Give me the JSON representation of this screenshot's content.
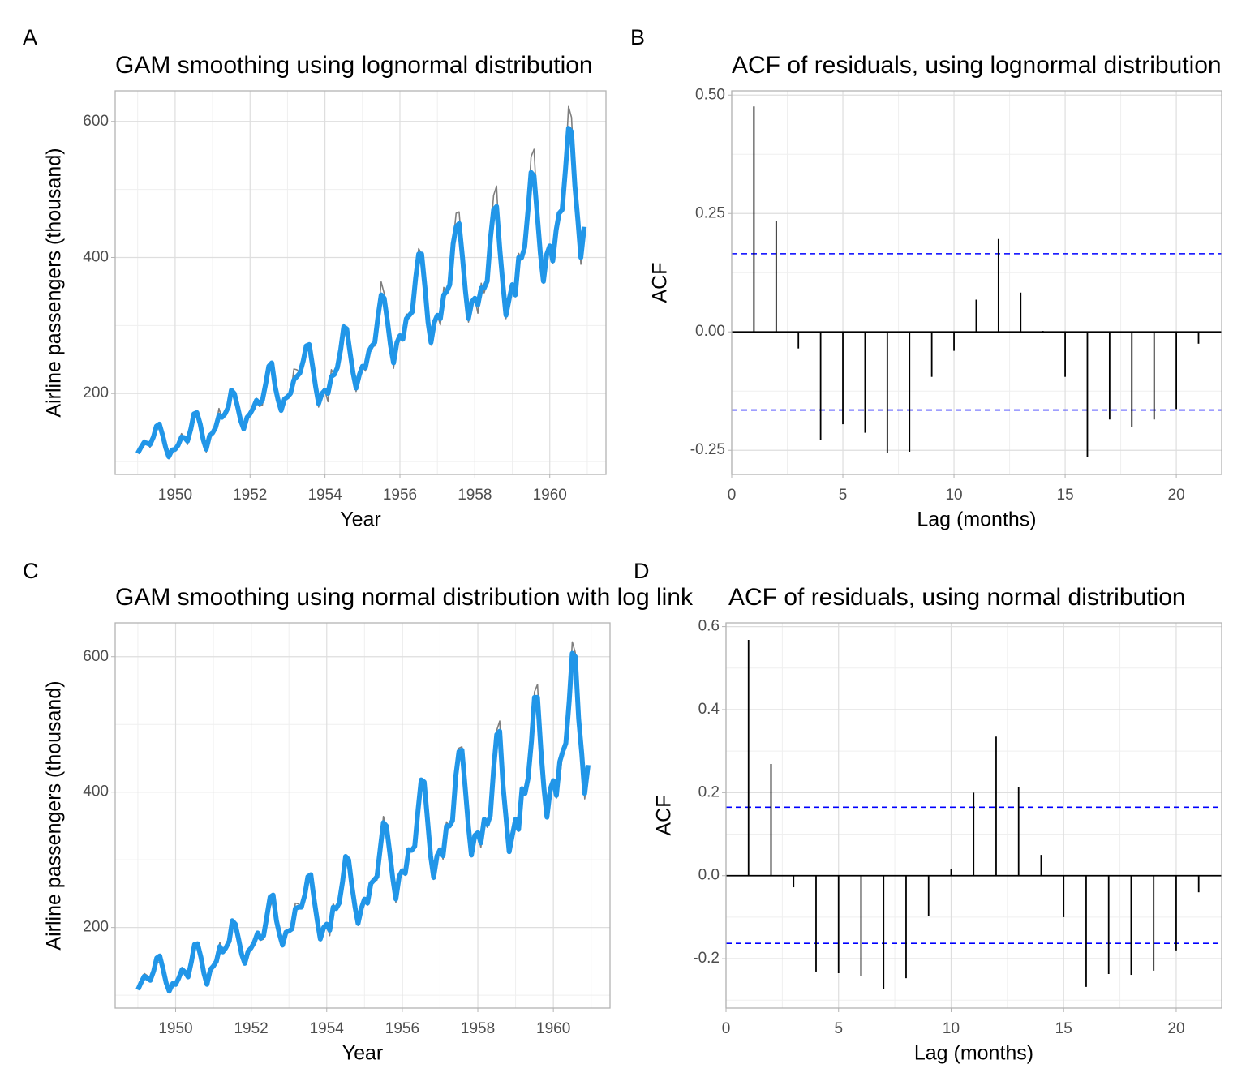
{
  "chart_data": [
    {
      "type": "line",
      "tag": "A",
      "title": "GAM smoothing using lognormal distribution",
      "xlabel": "Year",
      "ylabel": "Airline passengers (thousand)",
      "x": [
        1949,
        1949.08,
        1949.17,
        1949.25,
        1949.33,
        1949.42,
        1949.5,
        1949.58,
        1949.67,
        1949.75,
        1949.83,
        1949.92,
        1950,
        1950.08,
        1950.17,
        1950.25,
        1950.33,
        1950.42,
        1950.5,
        1950.58,
        1950.67,
        1950.75,
        1950.83,
        1950.92,
        1951,
        1951.08,
        1951.17,
        1951.25,
        1951.33,
        1951.42,
        1951.5,
        1951.58,
        1951.67,
        1951.75,
        1951.83,
        1951.92,
        1952,
        1952.08,
        1952.17,
        1952.25,
        1952.33,
        1952.42,
        1952.5,
        1952.58,
        1952.67,
        1952.75,
        1952.83,
        1952.92,
        1953,
        1953.08,
        1953.17,
        1953.25,
        1953.33,
        1953.42,
        1953.5,
        1953.58,
        1953.67,
        1953.75,
        1953.83,
        1953.92,
        1954,
        1954.08,
        1954.17,
        1954.25,
        1954.33,
        1954.42,
        1954.5,
        1954.58,
        1954.67,
        1954.75,
        1954.83,
        1954.92,
        1955,
        1955.08,
        1955.17,
        1955.25,
        1955.33,
        1955.42,
        1955.5,
        1955.58,
        1955.67,
        1955.75,
        1955.83,
        1955.92,
        1956,
        1956.08,
        1956.17,
        1956.25,
        1956.33,
        1956.42,
        1956.5,
        1956.58,
        1956.67,
        1956.75,
        1956.83,
        1956.92,
        1957,
        1957.08,
        1957.17,
        1957.25,
        1957.33,
        1957.42,
        1957.5,
        1957.58,
        1957.67,
        1957.75,
        1957.83,
        1957.92,
        1958,
        1958.08,
        1958.17,
        1958.25,
        1958.33,
        1958.42,
        1958.5,
        1958.58,
        1958.67,
        1958.75,
        1958.83,
        1958.92,
        1959,
        1959.08,
        1959.17,
        1959.25,
        1959.33,
        1959.42,
        1959.5,
        1959.58,
        1959.67,
        1959.75,
        1959.83,
        1959.92,
        1960,
        1960.08,
        1960.17,
        1960.25,
        1960.33,
        1960.42,
        1960.5,
        1960.58,
        1960.67,
        1960.75,
        1960.83,
        1960.92
      ],
      "series": [
        {
          "color": "#7f7f7f",
          "linewidth": 1.6,
          "values": [
            112,
            118,
            132,
            129,
            121,
            135,
            148,
            148,
            136,
            119,
            104,
            118,
            115,
            126,
            141,
            135,
            125,
            149,
            170,
            170,
            158,
            133,
            114,
            140,
            145,
            150,
            178,
            163,
            172,
            178,
            199,
            199,
            184,
            162,
            146,
            166,
            171,
            180,
            193,
            181,
            183,
            218,
            230,
            242,
            209,
            191,
            172,
            194,
            196,
            196,
            236,
            235,
            229,
            243,
            264,
            272,
            237,
            211,
            180,
            201,
            204,
            188,
            235,
            227,
            234,
            264,
            302,
            293,
            259,
            229,
            203,
            229,
            242,
            233,
            267,
            269,
            270,
            315,
            364,
            347,
            312,
            274,
            237,
            278,
            284,
            277,
            317,
            313,
            318,
            374,
            413,
            405,
            355,
            306,
            271,
            306,
            315,
            301,
            356,
            348,
            355,
            422,
            465,
            467,
            404,
            347,
            305,
            336,
            340,
            318,
            362,
            348,
            363,
            435,
            491,
            505,
            404,
            359,
            310,
            337,
            360,
            342,
            406,
            396,
            420,
            472,
            548,
            559,
            463,
            407,
            362,
            405,
            417,
            391,
            419,
            461,
            472,
            535,
            622,
            606,
            508,
            461,
            390,
            432
          ]
        },
        {
          "color": "#2196e8",
          "linewidth": 6,
          "values": [
            112,
            120,
            128,
            127,
            125,
            136,
            152,
            155,
            138,
            120,
            107,
            117,
            118,
            124,
            136,
            135,
            130,
            148,
            170,
            172,
            155,
            132,
            118,
            138,
            142,
            150,
            168,
            165,
            170,
            180,
            205,
            200,
            180,
            160,
            148,
            165,
            170,
            178,
            190,
            185,
            190,
            215,
            240,
            245,
            210,
            190,
            175,
            192,
            195,
            200,
            220,
            225,
            230,
            248,
            270,
            272,
            240,
            210,
            185,
            200,
            205,
            200,
            225,
            228,
            238,
            265,
            298,
            295,
            260,
            230,
            208,
            228,
            240,
            238,
            262,
            270,
            275,
            315,
            345,
            340,
            305,
            270,
            245,
            275,
            285,
            280,
            310,
            315,
            320,
            370,
            405,
            405,
            355,
            305,
            275,
            305,
            315,
            310,
            345,
            350,
            360,
            420,
            445,
            450,
            400,
            350,
            310,
            335,
            340,
            330,
            355,
            355,
            365,
            430,
            470,
            475,
            410,
            360,
            315,
            340,
            360,
            345,
            400,
            400,
            415,
            470,
            525,
            520,
            460,
            405,
            365,
            405,
            417,
            395,
            440,
            465,
            470,
            530,
            590,
            585,
            505,
            455,
            400,
            445
          ]
        }
      ],
      "xlim": [
        1948.4,
        1961.5
      ],
      "ylim": [
        81,
        645
      ],
      "xticks": [
        1950,
        1952,
        1954,
        1956,
        1958,
        1960
      ],
      "yticks": [
        200,
        400,
        600
      ],
      "minor_xticks": [
        1949,
        1951,
        1953,
        1955,
        1957,
        1959,
        1961
      ],
      "minor_yticks": [
        100,
        300,
        500
      ],
      "grid": true
    },
    {
      "type": "stem",
      "tag": "B",
      "title": "ACF of residuals, using lognormal distribution",
      "xlabel": "Lag (months)",
      "ylabel": "ACF",
      "x": [
        1,
        2,
        3,
        4,
        5,
        6,
        7,
        8,
        9,
        10,
        11,
        12,
        13,
        14,
        15,
        16,
        17,
        18,
        19,
        20,
        21
      ],
      "values": [
        0.476,
        0.235,
        -0.035,
        -0.229,
        -0.195,
        -0.213,
        -0.255,
        -0.253,
        -0.095,
        -0.04,
        0.068,
        0.196,
        0.083,
        0.002,
        -0.095,
        -0.265,
        -0.185,
        -0.2,
        -0.185,
        -0.163,
        -0.025
      ],
      "color": "#000000",
      "confidence_bounds": [
        -0.165,
        0.165
      ],
      "ci_color": "#0000ff",
      "xlim": [
        0,
        22.04
      ],
      "ylim": [
        -0.301,
        0.509
      ],
      "xticks": [
        0,
        5,
        10,
        15,
        20
      ],
      "yticks": [
        {
          "value": 0.5,
          "label": "0.50"
        },
        0.25,
        {
          "value": 0,
          "label": "0.00"
        },
        -0.25
      ],
      "minor_xticks": [
        2.5,
        7.5,
        12.5,
        17.5
      ],
      "minor_yticks": [
        0.375,
        0.125,
        -0.125
      ],
      "grid": true
    },
    {
      "type": "line",
      "tag": "C",
      "title": "GAM smoothing using normal distribution with log link",
      "xlabel": "Year",
      "ylabel": "Airline passengers (thousand)",
      "x": [
        1949,
        1949.08,
        1949.17,
        1949.25,
        1949.33,
        1949.42,
        1949.5,
        1949.58,
        1949.67,
        1949.75,
        1949.83,
        1949.92,
        1950,
        1950.08,
        1950.17,
        1950.25,
        1950.33,
        1950.42,
        1950.5,
        1950.58,
        1950.67,
        1950.75,
        1950.83,
        1950.92,
        1951,
        1951.08,
        1951.17,
        1951.25,
        1951.33,
        1951.42,
        1951.5,
        1951.58,
        1951.67,
        1951.75,
        1951.83,
        1951.92,
        1952,
        1952.08,
        1952.17,
        1952.25,
        1952.33,
        1952.42,
        1952.5,
        1952.58,
        1952.67,
        1952.75,
        1952.83,
        1952.92,
        1953,
        1953.08,
        1953.17,
        1953.25,
        1953.33,
        1953.42,
        1953.5,
        1953.58,
        1953.67,
        1953.75,
        1953.83,
        1953.92,
        1954,
        1954.08,
        1954.17,
        1954.25,
        1954.33,
        1954.42,
        1954.5,
        1954.58,
        1954.67,
        1954.75,
        1954.83,
        1954.92,
        1955,
        1955.08,
        1955.17,
        1955.25,
        1955.33,
        1955.42,
        1955.5,
        1955.58,
        1955.67,
        1955.75,
        1955.83,
        1955.92,
        1956,
        1956.08,
        1956.17,
        1956.25,
        1956.33,
        1956.42,
        1956.5,
        1956.58,
        1956.67,
        1956.75,
        1956.83,
        1956.92,
        1957,
        1957.08,
        1957.17,
        1957.25,
        1957.33,
        1957.42,
        1957.5,
        1957.58,
        1957.67,
        1957.75,
        1957.83,
        1957.92,
        1958,
        1958.08,
        1958.17,
        1958.25,
        1958.33,
        1958.42,
        1958.5,
        1958.58,
        1958.67,
        1958.75,
        1958.83,
        1958.92,
        1959,
        1959.08,
        1959.17,
        1959.25,
        1959.33,
        1959.42,
        1959.5,
        1959.58,
        1959.67,
        1959.75,
        1959.83,
        1959.92,
        1960,
        1960.08,
        1960.17,
        1960.25,
        1960.33,
        1960.42,
        1960.5,
        1960.58,
        1960.67,
        1960.75,
        1960.83,
        1960.92
      ],
      "series": [
        {
          "color": "#7f7f7f",
          "linewidth": 1.6,
          "values": [
            112,
            118,
            132,
            129,
            121,
            135,
            148,
            148,
            136,
            119,
            104,
            118,
            115,
            126,
            141,
            135,
            125,
            149,
            170,
            170,
            158,
            133,
            114,
            140,
            145,
            150,
            178,
            163,
            172,
            178,
            199,
            199,
            184,
            162,
            146,
            166,
            171,
            180,
            193,
            181,
            183,
            218,
            230,
            242,
            209,
            191,
            172,
            194,
            196,
            196,
            236,
            235,
            229,
            243,
            264,
            272,
            237,
            211,
            180,
            201,
            204,
            188,
            235,
            227,
            234,
            264,
            302,
            293,
            259,
            229,
            203,
            229,
            242,
            233,
            267,
            269,
            270,
            315,
            364,
            347,
            312,
            274,
            237,
            278,
            284,
            277,
            317,
            313,
            318,
            374,
            413,
            405,
            355,
            306,
            271,
            306,
            315,
            301,
            356,
            348,
            355,
            422,
            465,
            467,
            404,
            347,
            305,
            336,
            340,
            318,
            362,
            348,
            363,
            435,
            491,
            505,
            404,
            359,
            310,
            337,
            360,
            342,
            406,
            396,
            420,
            472,
            548,
            559,
            463,
            407,
            362,
            405,
            417,
            391,
            419,
            461,
            472,
            535,
            622,
            606,
            508,
            461,
            390,
            432
          ]
        },
        {
          "color": "#2196e8",
          "linewidth": 6,
          "values": [
            108,
            118,
            128,
            125,
            122,
            136,
            155,
            158,
            138,
            118,
            106,
            117,
            116,
            125,
            138,
            134,
            127,
            150,
            175,
            176,
            156,
            132,
            116,
            138,
            143,
            150,
            172,
            164,
            170,
            180,
            210,
            205,
            182,
            160,
            147,
            165,
            170,
            178,
            192,
            184,
            188,
            218,
            245,
            248,
            210,
            190,
            174,
            193,
            195,
            198,
            228,
            230,
            230,
            248,
            275,
            278,
            240,
            210,
            183,
            200,
            205,
            196,
            230,
            228,
            236,
            268,
            305,
            300,
            260,
            230,
            206,
            229,
            242,
            236,
            265,
            270,
            275,
            318,
            355,
            350,
            310,
            272,
            242,
            276,
            284,
            280,
            315,
            314,
            320,
            375,
            418,
            415,
            358,
            306,
            274,
            306,
            315,
            306,
            350,
            350,
            358,
            425,
            460,
            462,
            404,
            350,
            307,
            336,
            340,
            325,
            360,
            352,
            365,
            435,
            485,
            490,
            408,
            360,
            312,
            338,
            360,
            345,
            405,
            398,
            420,
            475,
            540,
            540,
            462,
            406,
            363,
            405,
            417,
            395,
            445,
            460,
            472,
            535,
            605,
            600,
            508,
            458,
            398,
            440
          ]
        }
      ],
      "xlim": [
        1948.4,
        1961.5
      ],
      "ylim": [
        81,
        650
      ],
      "xticks": [
        1950,
        1952,
        1954,
        1956,
        1958,
        1960
      ],
      "yticks": [
        200,
        400,
        600
      ],
      "minor_xticks": [
        1949,
        1951,
        1953,
        1955,
        1957,
        1959,
        1961
      ],
      "minor_yticks": [
        100,
        300,
        500
      ],
      "grid": true
    },
    {
      "type": "stem",
      "tag": "D",
      "title": "ACF of residuals, using normal distribution",
      "xlabel": "Lag (months)",
      "ylabel": "ACF",
      "x": [
        1,
        2,
        3,
        4,
        5,
        6,
        7,
        8,
        9,
        10,
        11,
        12,
        13,
        14,
        15,
        16,
        17,
        18,
        19,
        20,
        21
      ],
      "values": [
        0.568,
        0.269,
        -0.028,
        -0.231,
        -0.235,
        -0.241,
        -0.274,
        -0.247,
        -0.097,
        0.015,
        0.2,
        0.335,
        0.213,
        0.05,
        -0.1,
        -0.268,
        -0.237,
        -0.239,
        -0.229,
        -0.18,
        -0.04
      ],
      "color": "#000000",
      "confidence_bounds": [
        -0.163,
        0.165
      ],
      "ci_color": "#0000ff",
      "xlim": [
        0,
        22.02
      ],
      "ylim": [
        -0.319,
        0.609
      ],
      "xticks": [
        0,
        5,
        10,
        15,
        20
      ],
      "yticks": [
        0.6,
        0.4,
        0.2,
        {
          "value": 0,
          "label": "0.0"
        },
        -0.2
      ],
      "minor_xticks": [
        2.5,
        7.5,
        12.5,
        17.5
      ],
      "minor_yticks": [
        0.5,
        0.3,
        0.1,
        -0.1,
        -0.3
      ],
      "grid": true
    }
  ]
}
